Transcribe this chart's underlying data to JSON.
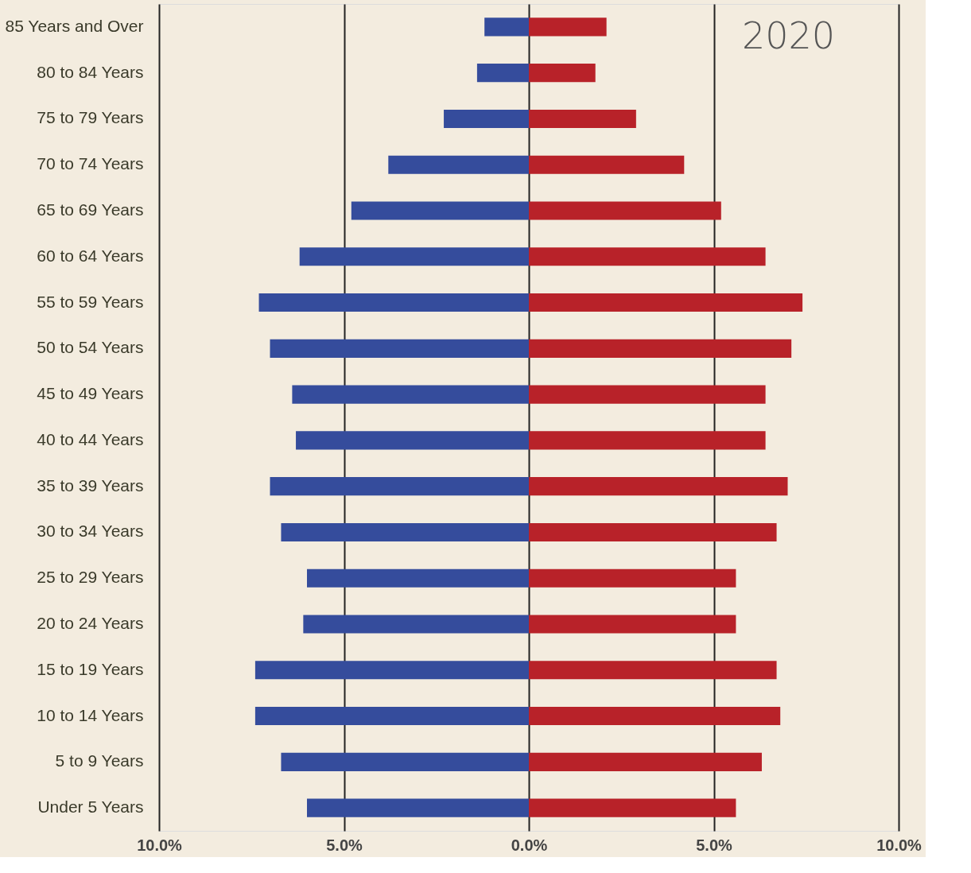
{
  "chart_data": {
    "type": "bar",
    "orientation": "horizontal",
    "categories": [
      "85 Years and Over",
      "80 to 84 Years",
      "75 to 79 Years",
      "70 to 74 Years",
      "65 to 69 Years",
      "60 to 64 Years",
      "55 to 59 Years",
      "50 to 54 Years",
      "45 to 49 Years",
      "40 to 44 Years",
      "35 to 39 Years",
      "30 to 34 Years",
      "25 to 29 Years",
      "20 to 24 Years",
      "15 to 19 Years",
      "10 to 14 Years",
      "5 to 9 Years",
      "Under 5 Years"
    ],
    "series": [
      {
        "color": "#354c9c",
        "values": [
          -1.2,
          -1.4,
          -2.3,
          -3.8,
          -4.8,
          -6.2,
          -7.3,
          -7.0,
          -6.4,
          -6.3,
          -7.0,
          -6.7,
          -6.0,
          -6.1,
          -7.4,
          -7.4,
          -6.7,
          -6.0
        ]
      },
      {
        "color": "#b82229",
        "values": [
          2.1,
          1.8,
          2.9,
          4.2,
          5.2,
          6.4,
          7.4,
          7.1,
          6.4,
          6.4,
          7.0,
          6.7,
          5.6,
          5.6,
          6.7,
          6.8,
          6.3,
          5.6
        ]
      }
    ],
    "xlim": [
      -10,
      10
    ],
    "xticks": [
      {
        "value": -10,
        "label": "10.0%"
      },
      {
        "value": -5,
        "label": "5.0%"
      },
      {
        "value": 0,
        "label": "0.0%"
      },
      {
        "value": 5,
        "label": "5.0%"
      },
      {
        "value": 10,
        "label": "10.0%"
      }
    ],
    "grid": "x",
    "stacked": true,
    "legend": false,
    "annotations": [
      "2020"
    ]
  }
}
